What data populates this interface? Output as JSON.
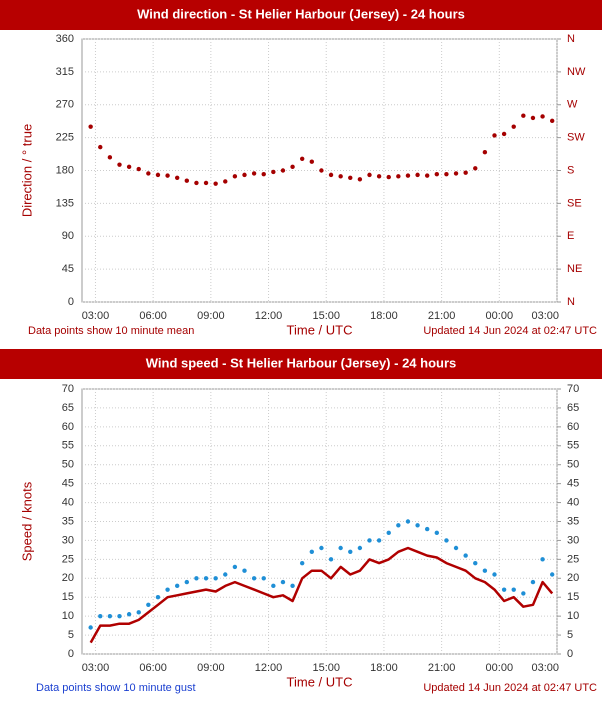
{
  "chart_data": [
    {
      "type": "scatter",
      "title": "Wind direction - St Helier Harbour (Jersey) - 24 hours",
      "xlabel": "Time / UTC",
      "ylabel": "Direction / ° true",
      "note_left": "Data points show 10 minute mean",
      "note_right": "Updated 14 Jun 2024 at 02:47 UTC",
      "x": [
        2.75,
        3.25,
        3.75,
        4.25,
        4.75,
        5.25,
        5.75,
        6.25,
        6.75,
        7.25,
        7.75,
        8.25,
        8.75,
        9.25,
        9.75,
        10.25,
        10.75,
        11.25,
        11.75,
        12.25,
        12.75,
        13.25,
        13.75,
        14.25,
        14.75,
        15.25,
        15.75,
        16.25,
        16.75,
        17.25,
        17.75,
        18.25,
        18.75,
        19.25,
        19.75,
        20.25,
        20.75,
        21.25,
        21.75,
        22.25,
        22.75,
        23.25,
        23.75,
        24.25,
        24.75,
        25.25,
        25.75,
        26.25,
        26.75
      ],
      "values": [
        240,
        212,
        198,
        188,
        185,
        182,
        176,
        174,
        173,
        170,
        166,
        163,
        163,
        162,
        165,
        172,
        174,
        176,
        175,
        178,
        180,
        185,
        196,
        192,
        180,
        174,
        172,
        170,
        168,
        174,
        172,
        171,
        172,
        173,
        174,
        173,
        175,
        175,
        176,
        177,
        183,
        205,
        228,
        230,
        240,
        255,
        252,
        254,
        248
      ],
      "color": "#a50000",
      "xlim": [
        2.3,
        27
      ],
      "xticks": [
        {
          "value": 3,
          "label": "03:00"
        },
        {
          "value": 6,
          "label": "06:00"
        },
        {
          "value": 9,
          "label": "09:00"
        },
        {
          "value": 12,
          "label": "12:00"
        },
        {
          "value": 15,
          "label": "15:00"
        },
        {
          "value": 18,
          "label": "18:00"
        },
        {
          "value": 21,
          "label": "21:00"
        },
        {
          "value": 24,
          "label": "00:00"
        },
        {
          "value": 27,
          "label": "03:00"
        }
      ],
      "ylim": [
        0,
        360
      ],
      "yticks": [
        0,
        45,
        90,
        135,
        180,
        225,
        270,
        315,
        360
      ],
      "y2lim": [
        0,
        360
      ],
      "y2ticks": [
        {
          "value": 0,
          "label": "N"
        },
        {
          "value": 45,
          "label": "NE"
        },
        {
          "value": 90,
          "label": "E"
        },
        {
          "value": 135,
          "label": "SE"
        },
        {
          "value": 180,
          "label": "S"
        },
        {
          "value": 225,
          "label": "SW"
        },
        {
          "value": 270,
          "label": "W"
        },
        {
          "value": 315,
          "label": "NW"
        },
        {
          "value": 360,
          "label": "N"
        }
      ],
      "grid": true
    },
    {
      "type": "line",
      "title": "Wind speed - St Helier Harbour (Jersey) - 24 hours",
      "xlabel": "Time / UTC",
      "ylabel": "Speed / knots",
      "note_left": "Data points show 10 minute gust",
      "note_right": "Updated 14 Jun 2024 at 02:47 UTC",
      "x": [
        2.75,
        3.25,
        3.75,
        4.25,
        4.75,
        5.25,
        5.75,
        6.25,
        6.75,
        7.25,
        7.75,
        8.25,
        8.75,
        9.25,
        9.75,
        10.25,
        10.75,
        11.25,
        11.75,
        12.25,
        12.75,
        13.25,
        13.75,
        14.25,
        14.75,
        15.25,
        15.75,
        16.25,
        16.75,
        17.25,
        17.75,
        18.25,
        18.75,
        19.25,
        19.75,
        20.25,
        20.75,
        21.25,
        21.75,
        22.25,
        22.75,
        23.25,
        23.75,
        24.25,
        24.75,
        25.25,
        25.75,
        26.25,
        26.75
      ],
      "series": [
        {
          "style": "markers",
          "color": "#1f8fd6",
          "values": [
            7,
            10,
            10,
            10,
            10.5,
            11,
            13,
            15,
            17,
            18,
            19,
            20,
            20,
            20,
            21,
            23,
            22,
            20,
            20,
            18,
            19,
            18,
            24,
            27,
            28,
            25,
            28,
            27,
            28,
            30,
            30,
            32,
            34,
            35,
            34,
            33,
            32,
            30,
            28,
            26,
            24,
            22,
            21,
            17,
            17,
            16,
            19,
            25,
            21
          ]
        },
        {
          "style": "line",
          "color": "#b00000",
          "values": [
            3,
            7.5,
            7.5,
            8,
            8,
            9,
            11,
            13,
            15,
            15.5,
            16,
            16.5,
            17,
            16.5,
            18,
            19,
            18,
            17,
            16,
            15,
            15.5,
            14,
            20,
            22,
            22,
            20,
            23,
            21,
            22,
            25,
            24,
            25,
            27,
            28,
            27,
            26,
            25.5,
            24,
            23,
            22,
            20,
            19,
            17,
            14,
            15,
            12.5,
            13,
            19,
            16
          ]
        }
      ],
      "xlim": [
        2.3,
        27
      ],
      "xticks": [
        {
          "value": 3,
          "label": "03:00"
        },
        {
          "value": 6,
          "label": "06:00"
        },
        {
          "value": 9,
          "label": "09:00"
        },
        {
          "value": 12,
          "label": "12:00"
        },
        {
          "value": 15,
          "label": "15:00"
        },
        {
          "value": 18,
          "label": "18:00"
        },
        {
          "value": 21,
          "label": "21:00"
        },
        {
          "value": 24,
          "label": "00:00"
        },
        {
          "value": 27,
          "label": "03:00"
        }
      ],
      "ylim": [
        0,
        70
      ],
      "yticks": [
        0,
        5,
        10,
        15,
        20,
        25,
        30,
        35,
        40,
        45,
        50,
        55,
        60,
        65,
        70
      ],
      "y2lim": [
        0,
        70
      ],
      "y2ticks": [
        0,
        5,
        10,
        15,
        20,
        25,
        30,
        35,
        40,
        45,
        50,
        55,
        60,
        65,
        70
      ],
      "grid": true
    }
  ]
}
